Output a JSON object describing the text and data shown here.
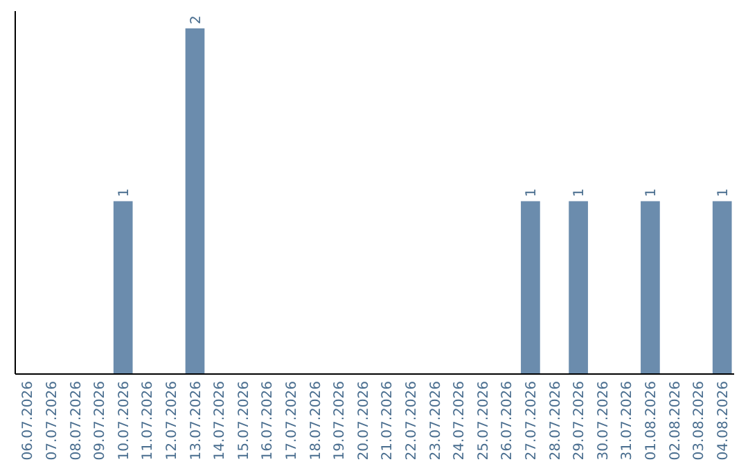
{
  "chart_data": {
    "type": "bar",
    "categories": [
      "06.07.2026",
      "07.07.2026",
      "08.07.2026",
      "09.07.2026",
      "10.07.2026",
      "11.07.2026",
      "12.07.2026",
      "13.07.2026",
      "14.07.2026",
      "15.07.2026",
      "16.07.2026",
      "17.07.2026",
      "18.07.2026",
      "19.07.2026",
      "20.07.2026",
      "21.07.2026",
      "22.07.2026",
      "23.07.2026",
      "24.07.2026",
      "25.07.2026",
      "26.07.2026",
      "27.07.2026",
      "28.07.2026",
      "29.07.2026",
      "30.07.2026",
      "31.07.2026",
      "01.08.2026",
      "02.08.2026",
      "03.08.2026",
      "04.08.2026"
    ],
    "values": [
      0,
      0,
      0,
      0,
      1,
      0,
      0,
      2,
      0,
      0,
      0,
      0,
      0,
      0,
      0,
      0,
      0,
      0,
      0,
      0,
      0,
      1,
      0,
      1,
      0,
      0,
      1,
      0,
      0,
      1
    ],
    "value_labels": [
      null,
      null,
      null,
      null,
      "1",
      null,
      null,
      "2",
      null,
      null,
      null,
      null,
      null,
      null,
      null,
      null,
      null,
      null,
      null,
      null,
      null,
      "1",
      null,
      "1",
      null,
      null,
      "1",
      null,
      null,
      "1"
    ],
    "color": "#6b8cad",
    "tick_labels": "x"
  }
}
